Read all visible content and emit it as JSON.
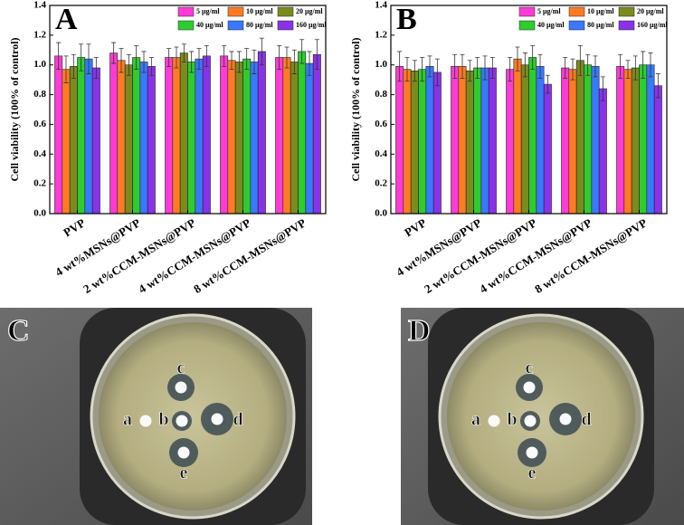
{
  "chart_data": [
    {
      "type": "bar",
      "title": "A",
      "ylabel": "Cell viability (100% of control)",
      "categories": [
        "PVP",
        "4 wt%MSNs@PVP",
        "2 wt%CCM-MSNs@PVP",
        "4 wt%CCM-MSNs@PVP",
        "8 wt%CCM-MSNs@PVP"
      ],
      "ylim": [
        0,
        1.4
      ],
      "yticks": [
        {
          "value": 0,
          "label": "0.0"
        },
        0.2,
        0.4,
        0.6,
        0.8,
        {
          "value": 1,
          "label": "1.0"
        },
        1.2,
        1.4
      ],
      "series": [
        {
          "name": "5 μg/ml",
          "color": "#ff3bd6",
          "values": [
            1.06,
            1.08,
            1.05,
            1.06,
            1.05
          ],
          "errors": [
            0.09,
            0.07,
            0.06,
            0.07,
            0.08
          ]
        },
        {
          "name": "10 μg/ml",
          "color": "#ff7b22",
          "values": [
            0.97,
            1.03,
            1.05,
            1.03,
            1.05
          ],
          "errors": [
            0.09,
            0.08,
            0.07,
            0.06,
            0.07
          ]
        },
        {
          "name": "20 μg/ml",
          "color": "#7c8b1e",
          "values": [
            0.99,
            1.0,
            1.08,
            1.02,
            1.02
          ],
          "errors": [
            0.08,
            0.07,
            0.06,
            0.07,
            0.08
          ]
        },
        {
          "name": "40 μg/ml",
          "color": "#2ecc2e",
          "values": [
            1.05,
            1.05,
            1.02,
            1.04,
            1.09
          ],
          "errors": [
            0.09,
            0.08,
            0.07,
            0.07,
            0.08
          ]
        },
        {
          "name": "80 μg/ml",
          "color": "#3a78ff",
          "values": [
            1.04,
            1.02,
            1.04,
            1.02,
            1.01
          ],
          "errors": [
            0.1,
            0.07,
            0.07,
            0.08,
            0.08
          ]
        },
        {
          "name": "160 μg/ml",
          "color": "#8a32e8",
          "values": [
            0.98,
            0.99,
            1.06,
            1.09,
            1.07
          ],
          "errors": [
            0.07,
            0.06,
            0.07,
            0.09,
            0.1
          ]
        }
      ]
    },
    {
      "type": "bar",
      "title": "B",
      "ylabel": "Cell viability (100% of control)",
      "categories": [
        "PVP",
        "4 wt%MSNs@PVP",
        "2 wt%CCM-MSNs@PVP",
        "4 wt%CCM-MSNs@PVP",
        "8 wt%CCM-MSNs@PVP"
      ],
      "ylim": [
        0,
        1.4
      ],
      "yticks": [
        {
          "value": 0,
          "label": "0.0"
        },
        0.2,
        0.4,
        0.6,
        0.8,
        {
          "value": 1,
          "label": "1.0"
        },
        1.2,
        1.4
      ],
      "series": [
        {
          "name": "5 μg/ml",
          "color": "#ff3bd6",
          "values": [
            0.99,
            0.99,
            0.97,
            0.98,
            0.99
          ],
          "errors": [
            0.1,
            0.08,
            0.08,
            0.07,
            0.08
          ]
        },
        {
          "name": "10 μg/ml",
          "color": "#ff7b22",
          "values": [
            0.97,
            0.99,
            1.04,
            0.97,
            0.97
          ],
          "errors": [
            0.08,
            0.08,
            0.08,
            0.07,
            0.06
          ]
        },
        {
          "name": "20 μg/ml",
          "color": "#7c8b1e",
          "values": [
            0.96,
            0.96,
            1.0,
            1.03,
            0.98
          ],
          "errors": [
            0.07,
            0.07,
            0.08,
            0.1,
            0.08
          ]
        },
        {
          "name": "40 μg/ml",
          "color": "#2ecc2e",
          "values": [
            0.97,
            0.98,
            1.05,
            1.0,
            1.0
          ],
          "errors": [
            0.08,
            0.07,
            0.08,
            0.07,
            0.09
          ]
        },
        {
          "name": "80 μg/ml",
          "color": "#3a78ff",
          "values": [
            0.99,
            0.98,
            0.99,
            0.99,
            1.0
          ],
          "errors": [
            0.07,
            0.08,
            0.08,
            0.07,
            0.08
          ]
        },
        {
          "name": "160 μg/ml",
          "color": "#8a32e8",
          "values": [
            0.95,
            0.98,
            0.87,
            0.84,
            0.86
          ],
          "errors": [
            0.09,
            0.07,
            0.06,
            0.08,
            0.08
          ]
        }
      ]
    }
  ],
  "photos": [
    {
      "label": "C",
      "wells": [
        "a",
        "b",
        "c",
        "d",
        "e"
      ]
    },
    {
      "label": "D",
      "wells": [
        "a",
        "b",
        "c",
        "d",
        "e"
      ]
    }
  ]
}
